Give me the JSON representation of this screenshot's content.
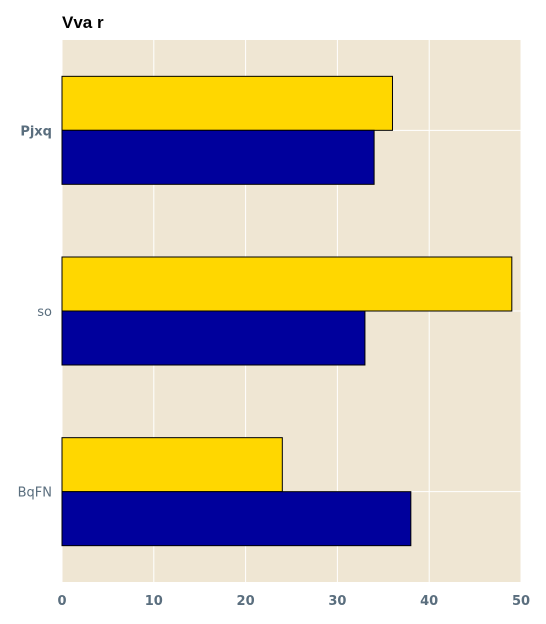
{
  "chart_data": {
    "type": "bar",
    "orientation": "horizontal",
    "title": "Vva r",
    "xlabel": "",
    "ylabel": "",
    "categories": [
      "Pjxq",
      "so",
      "BqFN"
    ],
    "series": [
      {
        "color": "#ffd700",
        "values": [
          36,
          49,
          24
        ]
      },
      {
        "color": "#00009c",
        "values": [
          34,
          33,
          38
        ]
      }
    ],
    "xlim": [
      0,
      50
    ],
    "xticks": [
      0,
      10,
      20,
      30,
      40,
      50
    ],
    "grid": true,
    "legend": "none",
    "colors": {
      "plot_background": "#efe6d3",
      "grid": "#ffffff",
      "bar_edge": "#000000"
    }
  }
}
